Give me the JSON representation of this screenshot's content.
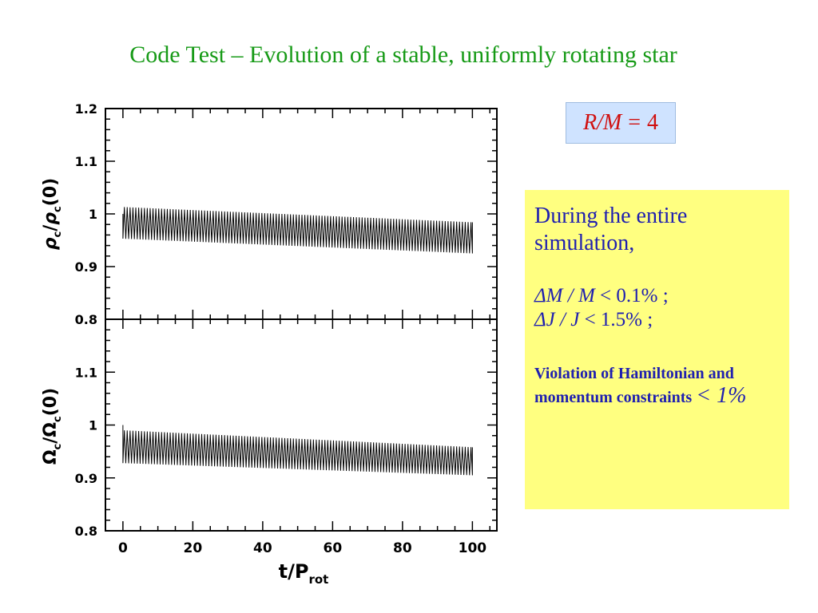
{
  "slide": {
    "title": "Code Test – Evolution of a stable, uniformly rotating star",
    "title_color": "#169a16"
  },
  "rm_box": {
    "left": "R/M",
    "eq": "=",
    "value": "4",
    "text_color": "#d01010",
    "bg_color": "#cfe3ff"
  },
  "info_box": {
    "intro": "During the entire simulation,",
    "line1_lhs": "ΔM / M",
    "line1_rhs": "< 0.1% ;",
    "line2_lhs": "ΔJ / J",
    "line2_rhs": "< 1.5% ;",
    "violation_text": "Violation of Hamiltonian and momentum constraints",
    "violation_value": "< 1%",
    "bg_color": "#ffff80",
    "text_color": "#1f1fb0"
  },
  "chart_data": [
    {
      "type": "line",
      "ylabel": "ρc/ρc(0)",
      "ylim": [
        0.8,
        1.2
      ],
      "yticks": [
        "0.8",
        "0.9",
        "1",
        "1.1",
        "1.2"
      ],
      "xlim": [
        -5,
        107
      ],
      "series": [
        {
          "t_start": 0,
          "t_end": 100,
          "oscillations": 122,
          "upper_start": 1.013,
          "upper_end": 0.984,
          "lower_start": 0.953,
          "lower_end": 0.925,
          "initial": 1.0
        }
      ]
    },
    {
      "type": "line",
      "ylabel": "Ωc/Ωc(0)",
      "ylim": [
        0.8,
        1.2
      ],
      "yticks": [
        "0.8",
        "0.9",
        "1",
        "1.1"
      ],
      "xlim": [
        -5,
        107
      ],
      "xlabel": "t/Prot",
      "xticks": [
        "0",
        "20",
        "40",
        "60",
        "80",
        "100"
      ],
      "series": [
        {
          "t_start": 0,
          "t_end": 100,
          "oscillations": 122,
          "upper_start": 0.99,
          "upper_end": 0.958,
          "lower_start": 0.928,
          "lower_end": 0.905,
          "initial": 1.0
        }
      ]
    }
  ]
}
